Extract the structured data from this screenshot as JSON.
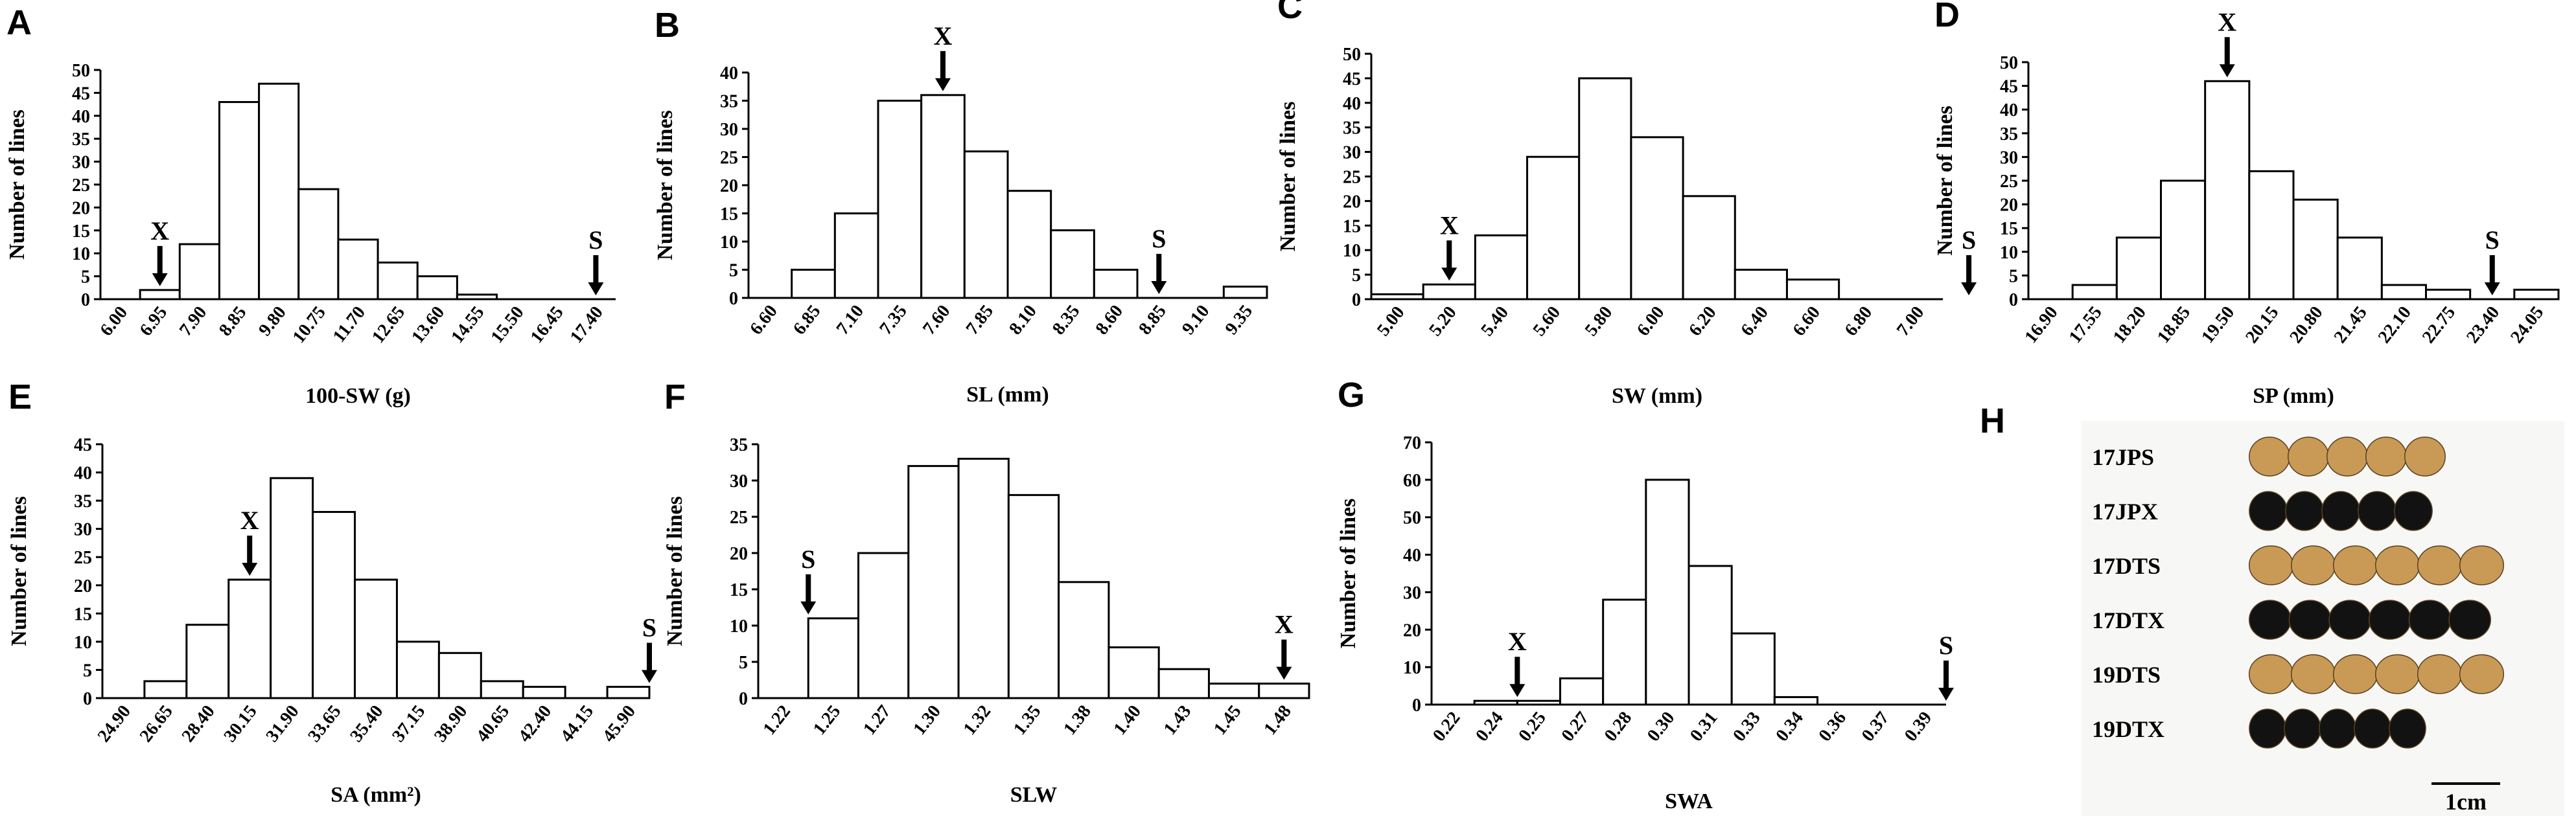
{
  "chart_data": [
    {
      "id": "A",
      "type": "bar",
      "xlabel": "100-SW (g)",
      "ylabel": "Number of lines",
      "ylim": [
        0,
        50
      ],
      "yticks": [
        0,
        5,
        10,
        15,
        20,
        25,
        30,
        35,
        40,
        45,
        50
      ],
      "categories": [
        "6.00",
        "6.95",
        "7.90",
        "8.85",
        "9.80",
        "10.75",
        "11.70",
        "12.65",
        "13.60",
        "14.55",
        "15.50",
        "16.45",
        "17.40"
      ],
      "values": [
        0,
        2,
        12,
        43,
        47,
        24,
        13,
        8,
        5,
        1,
        0,
        0,
        0
      ],
      "markers": [
        {
          "label": "X",
          "at": 1
        },
        {
          "label": "S",
          "at": 12
        }
      ]
    },
    {
      "id": "B",
      "type": "bar",
      "xlabel": "SL (mm)",
      "ylabel": "Number of lines",
      "ylim": [
        0,
        40
      ],
      "yticks": [
        0,
        5,
        10,
        15,
        20,
        25,
        30,
        35,
        40
      ],
      "categories": [
        "6.60",
        "6.85",
        "7.10",
        "7.35",
        "7.60",
        "7.85",
        "8.10",
        "8.35",
        "8.60",
        "8.85",
        "9.10",
        "9.35"
      ],
      "values": [
        0,
        5,
        15,
        35,
        36,
        26,
        19,
        12,
        5,
        0,
        0,
        2
      ],
      "markers": [
        {
          "label": "X",
          "at": 4
        },
        {
          "label": "S",
          "at": 9
        }
      ]
    },
    {
      "id": "C",
      "type": "bar",
      "xlabel": "SW (mm)",
      "ylabel": "Number of lines",
      "ylim": [
        0,
        50
      ],
      "yticks": [
        0,
        5,
        10,
        15,
        20,
        25,
        30,
        35,
        40,
        45,
        50
      ],
      "categories": [
        "5.00",
        "5.20",
        "5.40",
        "5.60",
        "5.80",
        "6.00",
        "6.20",
        "6.40",
        "6.60",
        "6.80",
        "7.00"
      ],
      "values": [
        1,
        3,
        13,
        29,
        45,
        33,
        21,
        6,
        4,
        0,
        0
      ],
      "markers": [
        {
          "label": "X",
          "at": 1
        },
        {
          "label": "S",
          "at": 11
        }
      ]
    },
    {
      "id": "D",
      "type": "bar",
      "xlabel": "SP (mm)",
      "ylabel": "Number of lines",
      "ylim": [
        0,
        50
      ],
      "yticks": [
        0,
        5,
        10,
        15,
        20,
        25,
        30,
        35,
        40,
        45,
        50
      ],
      "categories": [
        "16.90",
        "17.55",
        "18.20",
        "18.85",
        "19.50",
        "20.15",
        "20.80",
        "21.45",
        "22.10",
        "22.75",
        "23.40",
        "24.05"
      ],
      "values": [
        0,
        3,
        13,
        25,
        46,
        27,
        21,
        13,
        3,
        2,
        0,
        2
      ],
      "markers": [
        {
          "label": "X",
          "at": 4
        },
        {
          "label": "S",
          "at": 10
        }
      ]
    },
    {
      "id": "E",
      "type": "bar",
      "xlabel": "SA (mm²)",
      "ylabel": "Number of lines",
      "ylim": [
        0,
        45
      ],
      "yticks": [
        0,
        5,
        10,
        15,
        20,
        25,
        30,
        35,
        40,
        45
      ],
      "categories": [
        "24.90",
        "26.65",
        "28.40",
        "30.15",
        "31.90",
        "33.65",
        "35.40",
        "37.15",
        "38.90",
        "40.65",
        "42.40",
        "44.15",
        "45.90"
      ],
      "values": [
        0,
        3,
        13,
        21,
        39,
        33,
        21,
        10,
        8,
        3,
        2,
        0,
        2
      ],
      "markers": [
        {
          "label": "X",
          "at": 3
        },
        {
          "label": "S",
          "at": 12.5
        }
      ]
    },
    {
      "id": "F",
      "type": "bar",
      "xlabel": "SLW",
      "ylabel": "Number of lines",
      "ylim": [
        0,
        35
      ],
      "yticks": [
        0,
        5,
        10,
        15,
        20,
        25,
        30,
        35
      ],
      "categories": [
        "1.22",
        "1.25",
        "1.27",
        "1.30",
        "1.32",
        "1.35",
        "1.38",
        "1.40",
        "1.43",
        "1.45",
        "1.48"
      ],
      "values": [
        0,
        11,
        20,
        32,
        33,
        28,
        16,
        7,
        4,
        2,
        2
      ],
      "markers": [
        {
          "label": "S",
          "at": 0.5
        },
        {
          "label": "X",
          "at": 10
        }
      ]
    },
    {
      "id": "G",
      "type": "bar",
      "xlabel": "SWA",
      "ylabel": "Number of lines",
      "ylim": [
        0,
        70
      ],
      "yticks": [
        0,
        10,
        20,
        30,
        40,
        50,
        60,
        70
      ],
      "categories": [
        "0.22",
        "0.24",
        "0.25",
        "0.27",
        "0.28",
        "0.30",
        "0.31",
        "0.33",
        "0.34",
        "0.36",
        "0.37",
        "0.39"
      ],
      "values": [
        0,
        1,
        1,
        7,
        28,
        60,
        37,
        19,
        2,
        0,
        0,
        0
      ],
      "markers": [
        {
          "label": "X",
          "at": 1.5
        },
        {
          "label": "S",
          "at": 11.5
        }
      ]
    }
  ],
  "seed_panel": {
    "id": "H",
    "rows": [
      {
        "label": "17JPS",
        "color": "#c99a56"
      },
      {
        "label": "17JPX",
        "color": "#121212"
      },
      {
        "label": "17DTS",
        "color": "#c99a56"
      },
      {
        "label": "17DTX",
        "color": "#121212"
      },
      {
        "label": "19DTS",
        "color": "#c99a56"
      },
      {
        "label": "19DTX",
        "color": "#121212"
      }
    ],
    "scale_label": "1cm"
  }
}
